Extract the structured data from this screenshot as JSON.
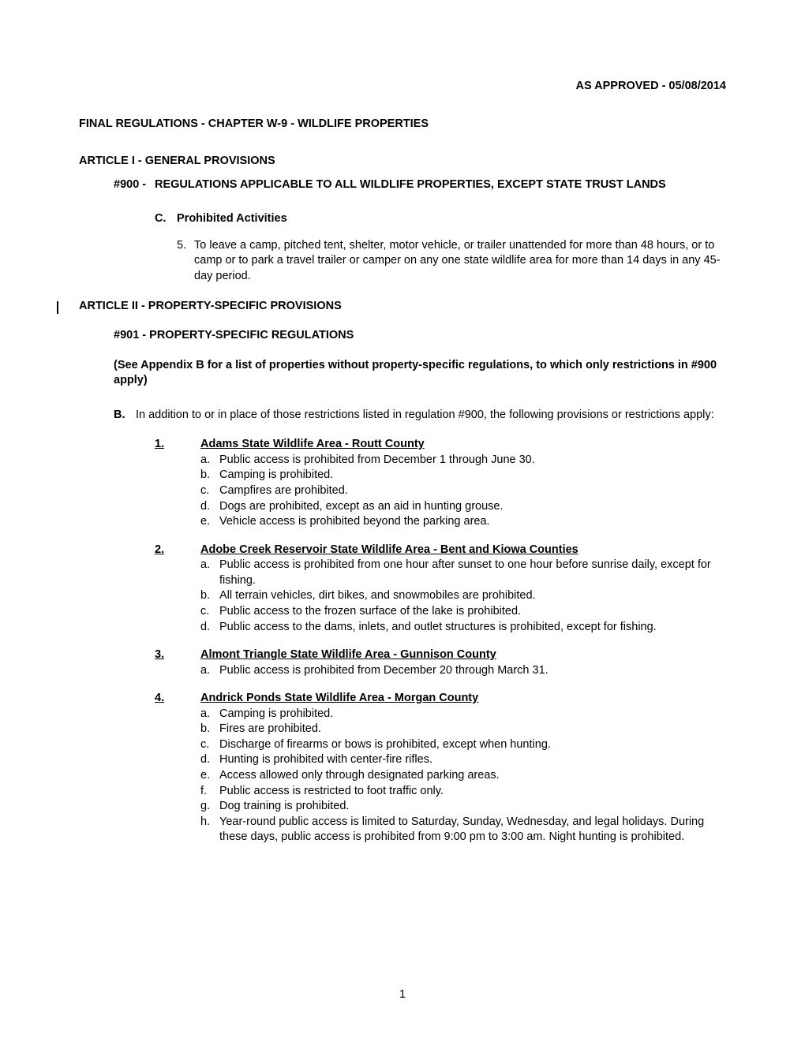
{
  "approved": "AS APPROVED - 05/08/2014",
  "chapter_title": "FINAL REGULATIONS - CHAPTER W-9 - WILDLIFE PROPERTIES",
  "article1_title": "ARTICLE I - GENERAL PROVISIONS",
  "section900": {
    "num": "#900 -",
    "title": "REGULATIONS APPLICABLE TO ALL WILDLIFE PROPERTIES, EXCEPT STATE TRUST LANDS"
  },
  "subC": {
    "letter": "C.",
    "title": "Prohibited Activities"
  },
  "item5": {
    "num": "5.",
    "text": "To leave a camp, pitched tent, shelter, motor vehicle, or trailer unattended for more than 48 hours, or to camp or to park a travel trailer or camper on any one state wildlife area for more than 14 days in any 45-day period."
  },
  "article2_title": "ARTICLE II - PROPERTY-SPECIFIC PROVISIONS",
  "section901": "#901 - PROPERTY-SPECIFIC REGULATIONS",
  "appendix_note": "(See Appendix B for a list of properties without property-specific regulations, to which only restrictions in #900 apply)",
  "itemB": {
    "letter": "B.",
    "text": "In addition to or in place of those restrictions listed in regulation #900, the following provisions or restrictions apply:"
  },
  "properties": [
    {
      "num": "1.",
      "title": "Adams State Wildlife Area - Routt County",
      "items": [
        {
          "letter": "a.",
          "text": "Public access is prohibited from December 1 through June 30."
        },
        {
          "letter": "b.",
          "text": "Camping is prohibited."
        },
        {
          "letter": "c.",
          "text": "Campfires are prohibited."
        },
        {
          "letter": "d.",
          "text": "Dogs are prohibited, except as an aid in hunting grouse."
        },
        {
          "letter": "e.",
          "text": "Vehicle access is prohibited beyond the parking area."
        }
      ]
    },
    {
      "num": "2.",
      "title": "Adobe Creek Reservoir State Wildlife Area - Bent and Kiowa Counties",
      "items": [
        {
          "letter": "a.",
          "text": "Public access is prohibited from one hour after sunset to one hour before sunrise daily, except for fishing."
        },
        {
          "letter": "b.",
          "text": "All terrain vehicles, dirt bikes, and snowmobiles are prohibited."
        },
        {
          "letter": "c.",
          "text": "Public access to the frozen surface of the lake is prohibited."
        },
        {
          "letter": "d.",
          "text": "Public access to the dams, inlets, and outlet structures is prohibited, except for fishing."
        }
      ]
    },
    {
      "num": "3.",
      "title": "Almont Triangle State Wildlife Area - Gunnison County",
      "items": [
        {
          "letter": "a.",
          "text": "Public access is prohibited from December 20 through March 31."
        }
      ]
    },
    {
      "num": "4.",
      "title": "Andrick Ponds State Wildlife Area - Morgan County",
      "items": [
        {
          "letter": "a.",
          "text": "Camping is prohibited."
        },
        {
          "letter": "b.",
          "text": "Fires are prohibited."
        },
        {
          "letter": "c.",
          "text": "Discharge of firearms or bows is prohibited, except when hunting."
        },
        {
          "letter": "d.",
          "text": "Hunting is prohibited with center-fire rifles."
        },
        {
          "letter": "e.",
          "text": "Access allowed only through designated parking areas."
        },
        {
          "letter": "f.",
          "text": "Public access is restricted to foot traffic only."
        },
        {
          "letter": "g.",
          "text": "Dog training is prohibited."
        },
        {
          "letter": "h.",
          "text": "Year-round public access is limited to Saturday, Sunday, Wednesday, and legal holidays.  During these days, public access is prohibited from 9:00 pm to 3:00 am.  Night hunting is prohibited."
        }
      ]
    }
  ],
  "page_number": "1"
}
